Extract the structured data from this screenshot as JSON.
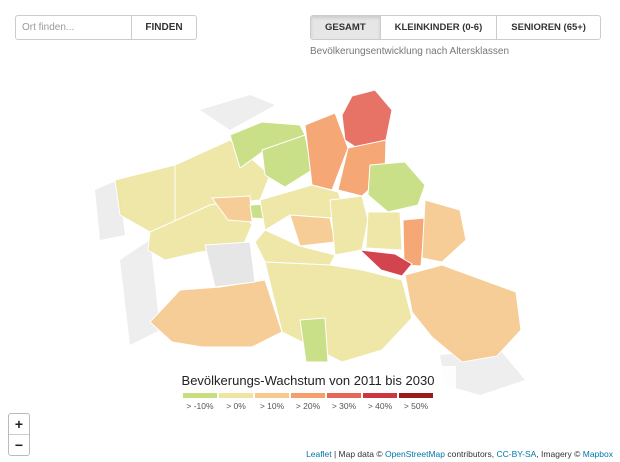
{
  "search": {
    "placeholder": "Ort finden...",
    "button": "FINDEN"
  },
  "tabs": [
    {
      "label": "GESAMT",
      "active": true
    },
    {
      "label": "KLEINKINDER (0-6)",
      "active": false
    },
    {
      "label": "SENIOREN (65+)",
      "active": false
    }
  ],
  "subtitle": "Bevölkerungsentwicklung nach Altersklassen",
  "legend": {
    "title": "Bevölkerungs-Wachstum von 2011 bis 2030",
    "items": [
      {
        "label": "> -10%",
        "color": "#c6de7e"
      },
      {
        "label": "> 0%",
        "color": "#ede5a0"
      },
      {
        "label": "> 10%",
        "color": "#f7c98f"
      },
      {
        "label": "> 20%",
        "color": "#f5a06b"
      },
      {
        "label": "> 30%",
        "color": "#e6675a"
      },
      {
        "label": "> 40%",
        "color": "#cf3540"
      },
      {
        "label": "> 50%",
        "color": "#9b1a1a"
      }
    ]
  },
  "zoom": {
    "in": "+",
    "out": "−"
  },
  "attribution": [
    {
      "text": "Leaflet",
      "link": true
    },
    {
      "text": " | Map data © ",
      "link": false
    },
    {
      "text": "OpenStreetMap",
      "link": true
    },
    {
      "text": " contributors, ",
      "link": false
    },
    {
      "text": "CC-BY-SA",
      "link": true
    },
    {
      "text": ", Imagery © ",
      "link": false
    },
    {
      "text": "Mapbox",
      "link": true
    }
  ]
}
